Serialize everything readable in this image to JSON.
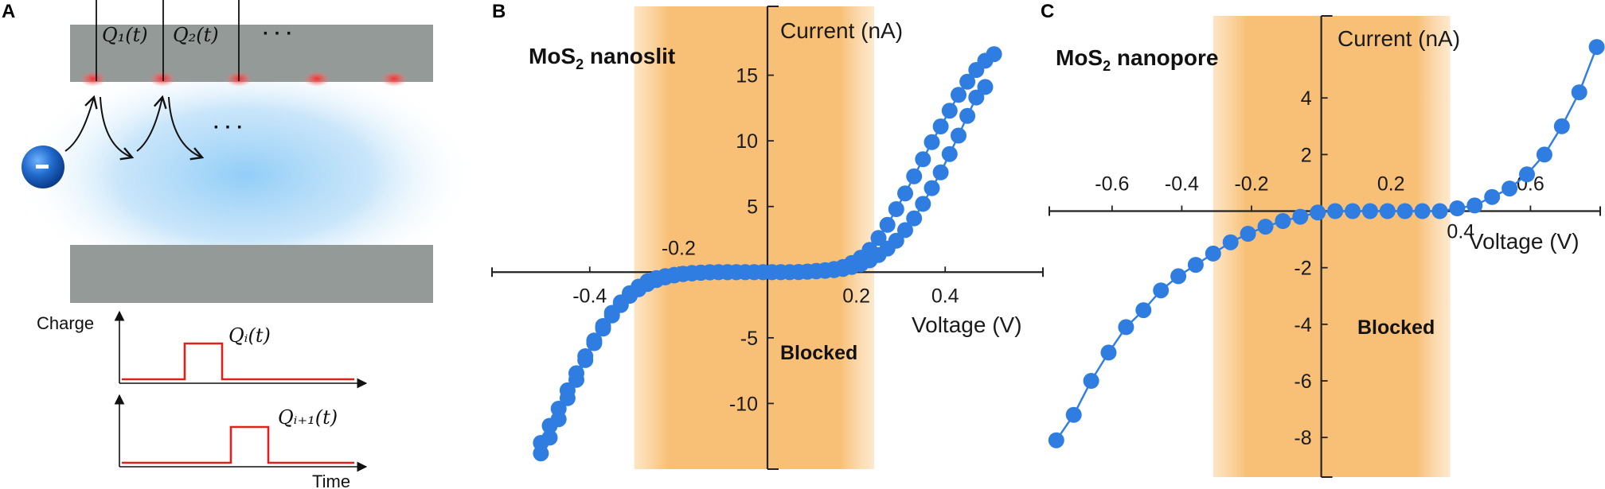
{
  "panels": {
    "a": {
      "label": "A",
      "q1": "Q₁(t)",
      "q2": "Q₂(t)",
      "top_ellipsis": "· · ·",
      "arrow_ellipsis": "· · ·",
      "charge_label": "Charge",
      "time_label": "Time",
      "qi": "Qᵢ(t)",
      "qi1": "Qᵢ₊₁(t)"
    },
    "b": {
      "label": "B"
    },
    "c": {
      "label": "C"
    }
  },
  "colors": {
    "marker": "#2f7de1",
    "blocked_band": "#f7b55f",
    "electrode": "#939a97",
    "pulse": "#e0201b",
    "electron": "#1a5fb4"
  },
  "chart_data": [
    {
      "type": "line",
      "title": "MoS2 nanoslit",
      "xlabel": "Voltage (V)",
      "ylabel": "Current (nA)",
      "xlim": [
        -0.62,
        0.62
      ],
      "ylim": [
        -15,
        20
      ],
      "xticks": [
        -0.4,
        -0.2,
        0.2,
        0.4
      ],
      "xtick_labels": [
        "-0.4",
        "-0.2",
        "0.2",
        "0.4"
      ],
      "yticks": [
        -10,
        -5,
        5,
        10,
        15
      ],
      "ytick_labels": [
        "-10",
        "-5",
        "5",
        "10",
        "15"
      ],
      "grid": false,
      "annotation": "Blocked",
      "blocked_region": [
        -0.3,
        0.24
      ],
      "series": [
        {
          "x": [
            -0.51,
            -0.49,
            -0.47,
            -0.45,
            -0.43,
            -0.41,
            -0.39,
            -0.37,
            -0.35,
            -0.33,
            -0.31,
            -0.29,
            -0.27,
            -0.25,
            -0.23,
            -0.21,
            -0.19,
            -0.17,
            -0.15,
            -0.13,
            -0.11,
            -0.09,
            -0.07,
            -0.05,
            -0.03,
            -0.01,
            0.01,
            0.03,
            0.05,
            0.07,
            0.09,
            0.11,
            0.13,
            0.15,
            0.17,
            0.19,
            0.21,
            0.23,
            0.25,
            0.27,
            0.29,
            0.31,
            0.33,
            0.35,
            0.37,
            0.39,
            0.41,
            0.43,
            0.45,
            0.47,
            0.49,
            0.51
          ],
          "y": [
            -13.8,
            -12.6,
            -11.2,
            -9.6,
            -8.2,
            -6.7,
            -5.4,
            -4.3,
            -3.3,
            -2.5,
            -1.8,
            -1.3,
            -0.9,
            -0.6,
            -0.4,
            -0.25,
            -0.15,
            -0.1,
            -0.05,
            -0.02,
            0,
            0,
            0,
            0,
            0,
            0,
            0,
            0,
            0,
            0.02,
            0.05,
            0.1,
            0.15,
            0.25,
            0.4,
            0.7,
            1.1,
            1.7,
            2.6,
            3.6,
            4.8,
            6.0,
            7.3,
            8.6,
            9.9,
            11.1,
            12.3,
            13.5,
            14.5,
            15.4,
            16.1,
            16.6
          ]
        },
        {
          "x": [
            -0.51,
            -0.49,
            -0.47,
            -0.45,
            -0.43,
            -0.41,
            -0.39,
            -0.37,
            -0.35,
            -0.33,
            -0.31,
            -0.29,
            -0.27,
            -0.25,
            -0.23,
            -0.21,
            -0.19,
            -0.17,
            -0.15,
            -0.13,
            -0.11,
            -0.09,
            -0.07,
            -0.05,
            -0.03,
            -0.01,
            0.01,
            0.03,
            0.05,
            0.07,
            0.09,
            0.11,
            0.13,
            0.15,
            0.17,
            0.19,
            0.21,
            0.23,
            0.25,
            0.27,
            0.29,
            0.31,
            0.33,
            0.35,
            0.37,
            0.39,
            0.41,
            0.43,
            0.45,
            0.47,
            0.49
          ],
          "y": [
            -13.0,
            -11.7,
            -10.4,
            -9.0,
            -7.7,
            -6.4,
            -5.2,
            -4.1,
            -3.1,
            -2.3,
            -1.6,
            -1.1,
            -0.7,
            -0.45,
            -0.3,
            -0.2,
            -0.12,
            -0.06,
            -0.03,
            0,
            0,
            0,
            0,
            0,
            0,
            0,
            0,
            0,
            0,
            0,
            0.03,
            0.06,
            0.1,
            0.15,
            0.25,
            0.4,
            0.6,
            0.9,
            1.3,
            1.8,
            2.4,
            3.2,
            4.1,
            5.2,
            6.4,
            7.6,
            9.0,
            10.4,
            11.9,
            13.3,
            14.1
          ]
        }
      ]
    },
    {
      "type": "line",
      "title": "MoS2 nanopore",
      "xlabel": "Voltage (V)",
      "ylabel": "Current (nA)",
      "xlim": [
        -0.78,
        0.8
      ],
      "ylim": [
        -9.4,
        6.9
      ],
      "xticks": [
        -0.6,
        -0.4,
        -0.2,
        0.2,
        0.4,
        0.6
      ],
      "xtick_labels": [
        "-0.6",
        "-0.4",
        "-0.2",
        "0.2",
        "0.4",
        "0.6"
      ],
      "yticks": [
        -8,
        -6,
        -4,
        -2,
        2,
        4
      ],
      "ytick_labels": [
        "-8",
        "-6",
        "-4",
        "-2",
        "2",
        "4"
      ],
      "grid": false,
      "annotation": "Blocked",
      "blocked_region": [
        -0.31,
        0.37
      ],
      "series": [
        {
          "x": [
            -0.76,
            -0.71,
            -0.66,
            -0.61,
            -0.56,
            -0.51,
            -0.46,
            -0.41,
            -0.36,
            -0.31,
            -0.26,
            -0.21,
            -0.16,
            -0.11,
            -0.06,
            -0.01,
            0.04,
            0.09,
            0.14,
            0.19,
            0.24,
            0.29,
            0.34,
            0.39,
            0.44,
            0.49,
            0.54,
            0.59,
            0.64,
            0.69,
            0.74,
            0.79
          ],
          "y": [
            -8.1,
            -7.2,
            -6.0,
            -5.0,
            -4.1,
            -3.5,
            -2.8,
            -2.3,
            -1.9,
            -1.5,
            -1.1,
            -0.8,
            -0.55,
            -0.35,
            -0.2,
            -0.05,
            0,
            0,
            0,
            0,
            0,
            0,
            0,
            0.1,
            0.2,
            0.5,
            0.8,
            1.3,
            2.0,
            3.0,
            4.2,
            5.8
          ]
        }
      ]
    }
  ]
}
